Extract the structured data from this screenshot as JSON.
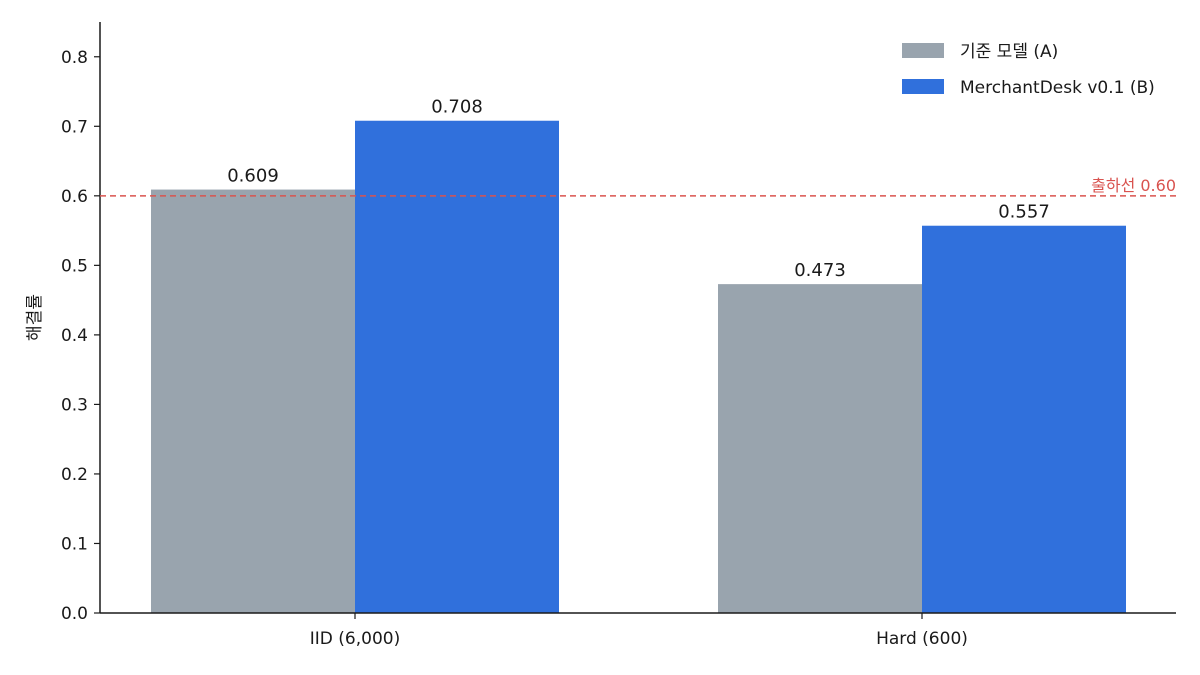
{
  "chart_data": {
    "type": "bar",
    "title": "",
    "xlabel": "",
    "ylabel": "해결률",
    "categories": [
      "IID (6,000)",
      "Hard (600)"
    ],
    "series": [
      {
        "name": "기준 모델 (A)",
        "values": [
          0.609,
          0.473
        ],
        "color": "#99a4ae"
      },
      {
        "name": "MerchantDesk v0.1 (B)",
        "values": [
          0.708,
          0.557
        ],
        "color": "#3070dc"
      }
    ],
    "data_labels": [
      [
        "0.609",
        "0.473"
      ],
      [
        "0.708",
        "0.557"
      ]
    ],
    "ylim": [
      0,
      0.85
    ],
    "yticks": [
      0.0,
      0.1,
      0.2,
      0.3,
      0.4,
      0.5,
      0.6,
      0.7,
      0.8
    ],
    "ytick_labels": [
      "0.0",
      "0.1",
      "0.2",
      "0.3",
      "0.4",
      "0.5",
      "0.6",
      "0.7",
      "0.8"
    ],
    "grid": false,
    "legend_position": "top-right",
    "reference_line": {
      "value": 0.6,
      "label": "출하선 0.60",
      "color": "#d9534f",
      "style": "dashed"
    }
  }
}
